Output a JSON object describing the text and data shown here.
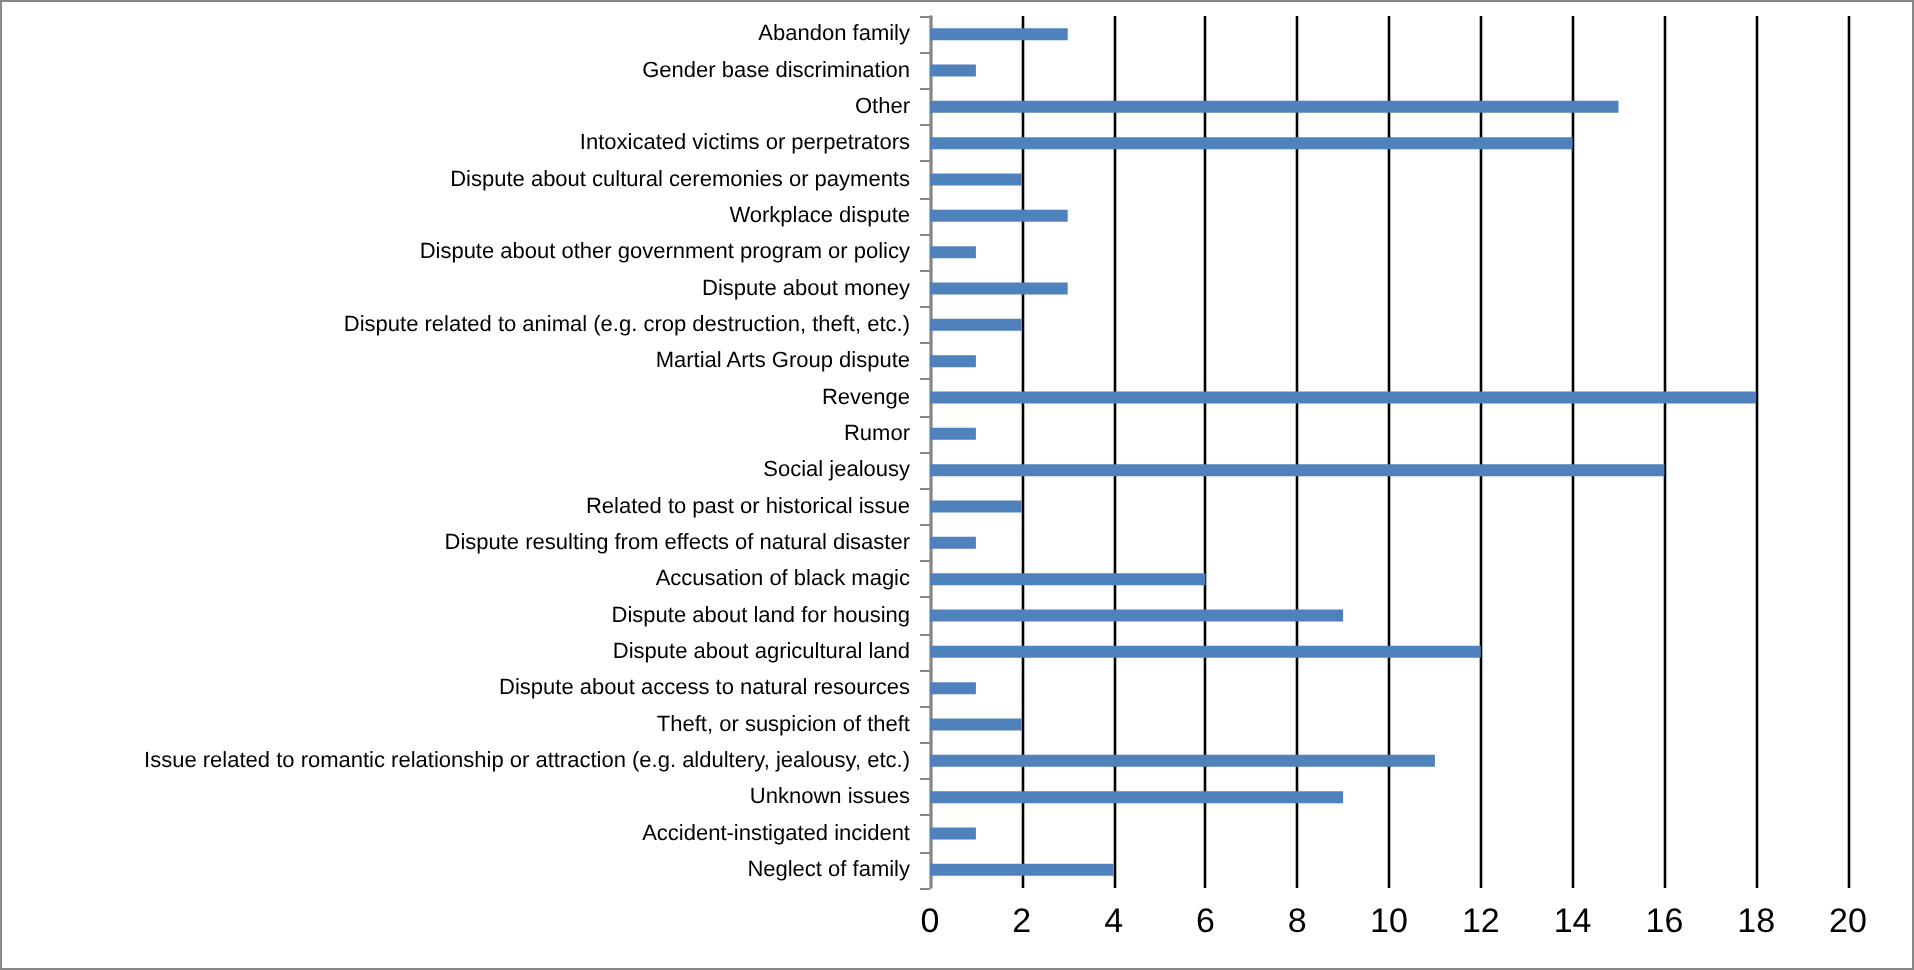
{
  "chart_data": {
    "type": "bar",
    "orientation": "horizontal",
    "categories": [
      "Abandon family",
      "Gender base discrimination",
      "Other",
      "Intoxicated victims or perpetrators",
      "Dispute about cultural ceremonies or payments",
      "Workplace dispute",
      "Dispute about other government program or policy",
      "Dispute about money",
      "Dispute related to animal (e.g. crop destruction, theft, etc.)",
      "Martial Arts Group dispute",
      "Revenge",
      "Rumor",
      "Social jealousy",
      "Related to past or historical issue",
      "Dispute resulting from effects of natural disaster",
      "Accusation of black magic",
      "Dispute about land for housing",
      "Dispute about agricultural land",
      "Dispute about access to natural resources",
      "Theft, or suspicion of theft",
      "Issue related to romantic relationship or attraction (e.g. aldultery, jealousy, etc.)",
      "Unknown issues",
      "Accident-instigated incident",
      "Neglect of family"
    ],
    "values": [
      3,
      1,
      15,
      14,
      2,
      3,
      1,
      3,
      2,
      1,
      18,
      1,
      16,
      2,
      1,
      6,
      9,
      12,
      1,
      2,
      11,
      9,
      1,
      4
    ],
    "color": "#4f81bd",
    "xlim": [
      0,
      20
    ],
    "xticks": [
      0,
      2,
      4,
      6,
      8,
      10,
      12,
      14,
      16,
      18,
      20
    ],
    "grid": "x"
  }
}
